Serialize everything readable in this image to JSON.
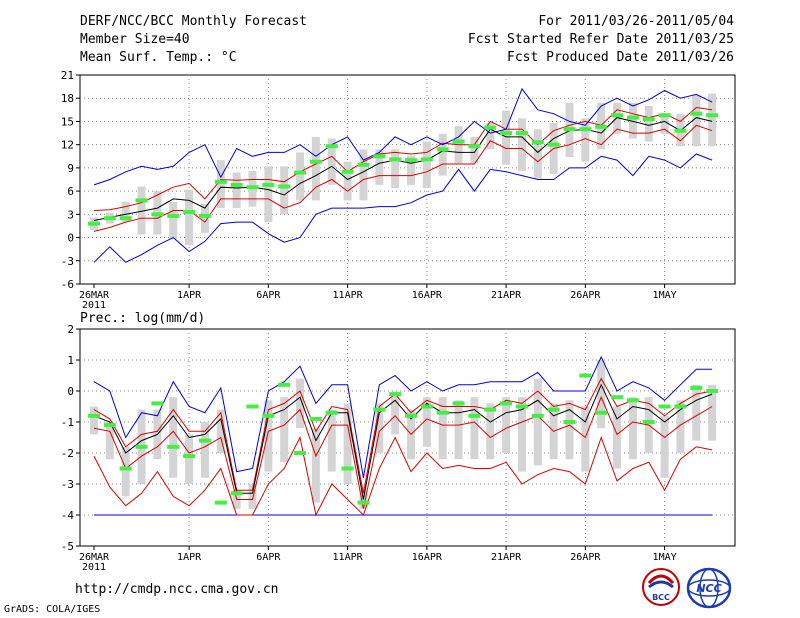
{
  "header": {
    "title": "DERF/NCC/BCC Monthly Forecast",
    "member_size": "Member Size=40",
    "variable": "Mean Surf. Temp.: °C",
    "period": "For 2011/03/26-2011/05/04",
    "started": "Fcst Started Refer Date 2011/03/25",
    "produced": "Fcst Produced Date 2011/03/26"
  },
  "panel2_label": "Prec.: log(mm/d)",
  "footer": {
    "url": "http://cmdp.ncc.cma.gov.cn",
    "credit": "GrADS: COLA/IGES",
    "logo1_text": "BCC",
    "logo2_text": "NCC"
  },
  "colors": {
    "envelope": "#0000dd",
    "spread": "#dd0000",
    "mean": "#000000",
    "box": "#d4d4d4",
    "median": "#44ee44",
    "grid": "#888888"
  },
  "chart_data": [
    {
      "type": "box-envelope",
      "variable": "Mean Surf. Temp.",
      "units": "°C",
      "x": [
        "26MAR",
        "27MAR",
        "28MAR",
        "29MAR",
        "30MAR",
        "31MAR",
        "1APR",
        "2APR",
        "3APR",
        "4APR",
        "5APR",
        "6APR",
        "7APR",
        "8APR",
        "9APR",
        "10APR",
        "11APR",
        "12APR",
        "13APR",
        "14APR",
        "15APR",
        "16APR",
        "17APR",
        "18APR",
        "19APR",
        "20APR",
        "21APR",
        "22APR",
        "23APR",
        "24APR",
        "25APR",
        "26APR",
        "27APR",
        "28APR",
        "29APR",
        "30APR",
        "1MAY",
        "2MAY",
        "3MAY",
        "4MAY"
      ],
      "x_tick_labels": [
        "26MAR\n2011",
        "1APR",
        "6APR",
        "11APR",
        "16APR",
        "21APR",
        "26APR",
        "1MAY"
      ],
      "x_tick_positions": [
        "26MAR",
        "1APR",
        "6APR",
        "11APR",
        "16APR",
        "21APR",
        "26APR",
        "1MAY"
      ],
      "ylim": [
        -6,
        21
      ],
      "yticks": [
        -6,
        -3,
        0,
        3,
        6,
        9,
        12,
        15,
        18,
        21
      ],
      "series": [
        {
          "name": "max",
          "color": "#0000dd",
          "values": [
            6.8,
            7.5,
            8.5,
            9.2,
            8.8,
            9.2,
            11,
            12,
            7.8,
            11.5,
            10.5,
            11,
            11,
            12,
            10.5,
            12,
            13,
            10,
            11,
            13,
            12,
            13,
            12,
            13,
            15,
            13.5,
            14,
            19.2,
            16.5,
            16,
            15,
            14.5,
            17,
            18,
            17,
            17.8,
            19,
            18,
            18.5,
            17.5
          ]
        },
        {
          "name": "spread_upper",
          "color": "#dd0000",
          "values": [
            3.5,
            3.6,
            4.0,
            4.5,
            5.5,
            6.5,
            7.0,
            5.0,
            7.5,
            7.4,
            7.5,
            7.5,
            7.2,
            8.5,
            9.5,
            10.5,
            8.5,
            9.8,
            10.8,
            11.0,
            10.8,
            11.0,
            12.2,
            12.0,
            12.0,
            15.0,
            14.0,
            14.0,
            12.0,
            13.8,
            14.5,
            15.0,
            14.5,
            16.5,
            16.0,
            15.5,
            16.0,
            15.0,
            16.8,
            16.5
          ]
        },
        {
          "name": "mean",
          "color": "#000000",
          "values": [
            2.2,
            2.6,
            3.0,
            3.4,
            3.8,
            5.0,
            4.8,
            3.8,
            6.5,
            6.4,
            6.5,
            6.2,
            5.5,
            7.0,
            8.0,
            9.2,
            7.5,
            8.5,
            9.6,
            10.0,
            9.6,
            10.0,
            11.2,
            11.0,
            11.0,
            14.0,
            13.0,
            13.0,
            11.0,
            12.8,
            13.8,
            14.0,
            13.5,
            15.5,
            15.0,
            14.5,
            15.0,
            13.8,
            15.5,
            15.0
          ]
        },
        {
          "name": "spread_lower",
          "color": "#dd0000",
          "values": [
            0.8,
            1.3,
            2.0,
            2.5,
            2.5,
            3.5,
            3.5,
            2.0,
            5.0,
            5.0,
            5.0,
            5.0,
            3.8,
            4.5,
            6.5,
            7.5,
            6.0,
            7.5,
            8.0,
            8.0,
            8.0,
            8.5,
            9.5,
            9.5,
            9.5,
            12.5,
            11.5,
            11.5,
            9.8,
            11.5,
            12.0,
            12.8,
            12.0,
            14.0,
            13.5,
            13.5,
            14.0,
            12.5,
            14.5,
            13.8
          ]
        },
        {
          "name": "min",
          "color": "#0000dd",
          "values": [
            -3.2,
            -1.2,
            -3.2,
            -2.2,
            -1.0,
            0,
            -1.8,
            -0.5,
            1.8,
            2.0,
            2.0,
            0.5,
            -0.6,
            0,
            3.0,
            3.8,
            3.8,
            3.8,
            4.0,
            4.0,
            4.5,
            5.5,
            6.0,
            8.8,
            6.0,
            8.8,
            8.5,
            8.0,
            7.5,
            7.5,
            9.0,
            9.0,
            10.5,
            10.0,
            8.0,
            10.5,
            10.0,
            9.0,
            10.8,
            10.0
          ]
        },
        {
          "name": "box_high",
          "color": "#d4d4d4",
          "values": [
            2.6,
            3.2,
            4.6,
            6.6,
            6.0,
            4.6,
            6.2,
            4.4,
            10.0,
            8.4,
            8.6,
            9.2,
            9.2,
            11.0,
            13.0,
            12.8,
            9.8,
            11.4,
            11.4,
            11.4,
            10.6,
            12.4,
            13.4,
            14.4,
            13.0,
            14.8,
            16.4,
            15.4,
            14.0,
            14.8,
            17.4,
            15.4,
            17.4,
            17.4,
            17.4,
            17.0,
            16.0,
            16.0,
            18.4,
            18.6
          ]
        },
        {
          "name": "box_low",
          "color": "#d4d4d4",
          "values": [
            1.0,
            1.8,
            2.0,
            0.4,
            0.4,
            -0.2,
            -1.0,
            0.6,
            3.8,
            3.8,
            4.0,
            2.0,
            3.0,
            4.8,
            4.8,
            6.8,
            4.8,
            4.8,
            6.8,
            6.4,
            6.8,
            6.4,
            8.0,
            9.6,
            9.6,
            11.4,
            9.4,
            8.6,
            7.6,
            8.2,
            10.4,
            9.8,
            11.4,
            13.4,
            12.8,
            12.4,
            13.4,
            11.8,
            11.8,
            11.8
          ]
        },
        {
          "name": "median",
          "color": "#44ee44",
          "values": [
            1.8,
            2.5,
            2.5,
            4.8,
            3.0,
            2.8,
            3.3,
            2.8,
            7.2,
            6.8,
            6.5,
            6.8,
            6.6,
            8.4,
            9.8,
            11.8,
            8.5,
            9.4,
            10.5,
            10.1,
            10.0,
            10.1,
            11.4,
            12.4,
            11.8,
            14.2,
            13.5,
            13.5,
            12.3,
            12.0,
            14.0,
            14.0,
            14.3,
            15.8,
            15.5,
            15.3,
            15.8,
            13.8,
            16.0,
            15.8
          ]
        }
      ]
    },
    {
      "type": "box-envelope",
      "variable": "Prec.",
      "units": "log(mm/d)",
      "x": [
        "26MAR",
        "27MAR",
        "28MAR",
        "29MAR",
        "30MAR",
        "31MAR",
        "1APR",
        "2APR",
        "3APR",
        "4APR",
        "5APR",
        "6APR",
        "7APR",
        "8APR",
        "9APR",
        "10APR",
        "11APR",
        "12APR",
        "13APR",
        "14APR",
        "15APR",
        "16APR",
        "17APR",
        "18APR",
        "19APR",
        "20APR",
        "21APR",
        "22APR",
        "23APR",
        "24APR",
        "25APR",
        "26APR",
        "27APR",
        "28APR",
        "29APR",
        "30APR",
        "1MAY",
        "2MAY",
        "3MAY",
        "4MAY"
      ],
      "x_tick_labels": [
        "26MAR\n2011",
        "1APR",
        "6APR",
        "11APR",
        "16APR",
        "21APR",
        "26APR",
        "1MAY"
      ],
      "x_tick_positions": [
        "26MAR",
        "1APR",
        "6APR",
        "11APR",
        "16APR",
        "21APR",
        "26APR",
        "1MAY"
      ],
      "ylim": [
        -5,
        2
      ],
      "yticks": [
        -5,
        -4,
        -3,
        -2,
        -1,
        0,
        1,
        2
      ],
      "series": [
        {
          "name": "max",
          "color": "#0000dd",
          "values": [
            0.3,
            0.0,
            -1.5,
            -0.7,
            -0.8,
            0.3,
            -0.5,
            -0.7,
            0.1,
            -2.6,
            -2.5,
            0.0,
            0.3,
            0.8,
            -0.4,
            0.2,
            0.2,
            -2.8,
            0.2,
            0.5,
            0.0,
            0.3,
            0.0,
            0.2,
            0.2,
            0.3,
            0.3,
            0.3,
            0.6,
            0.0,
            0.0,
            0.0,
            1.1,
            0.0,
            0.3,
            0.1,
            -0.3,
            0.2,
            0.7,
            0.7
          ]
        },
        {
          "name": "spread_upper",
          "color": "#dd0000",
          "values": [
            -0.6,
            -0.9,
            -1.8,
            -1.4,
            -1.3,
            -0.6,
            -1.3,
            -1.3,
            -0.7,
            -3.2,
            -3.2,
            -0.6,
            -0.4,
            0.0,
            -1.3,
            -0.5,
            -0.6,
            -3.3,
            -0.5,
            -0.1,
            -0.7,
            -0.3,
            -0.5,
            -0.5,
            -0.5,
            -0.6,
            -0.3,
            -0.4,
            0.0,
            -0.5,
            -0.4,
            -0.6,
            0.4,
            -0.5,
            -0.3,
            -0.4,
            -0.8,
            -0.4,
            -0.1,
            0.0
          ]
        },
        {
          "name": "mean",
          "color": "#000000",
          "values": [
            -0.8,
            -1.0,
            -2.0,
            -1.6,
            -1.4,
            -0.8,
            -1.5,
            -1.4,
            -0.9,
            -3.3,
            -3.3,
            -0.8,
            -0.6,
            -0.2,
            -1.6,
            -0.7,
            -0.7,
            -3.5,
            -0.7,
            -0.3,
            -0.9,
            -0.4,
            -0.7,
            -0.7,
            -0.6,
            -1.0,
            -0.7,
            -0.6,
            -0.3,
            -0.8,
            -0.6,
            -1.0,
            0.2,
            -0.9,
            -0.5,
            -0.6,
            -1.0,
            -0.6,
            -0.3,
            -0.1
          ]
        },
        {
          "name": "spread_lower",
          "color": "#dd0000",
          "values": [
            -1.2,
            -1.3,
            -2.5,
            -2.1,
            -1.8,
            -1.3,
            -2.0,
            -1.8,
            -1.5,
            -3.5,
            -3.5,
            -1.3,
            -1.1,
            -0.6,
            -2.1,
            -1.1,
            -1.1,
            -3.8,
            -1.3,
            -0.8,
            -1.4,
            -0.9,
            -1.1,
            -1.1,
            -1.0,
            -1.5,
            -1.2,
            -1.0,
            -0.8,
            -1.3,
            -1.1,
            -1.5,
            -0.2,
            -1.4,
            -1.0,
            -1.1,
            -1.5,
            -1.1,
            -0.8,
            -0.5
          ]
        },
        {
          "name": "min",
          "color": "#dd0000",
          "values": [
            -2.1,
            -3.1,
            -3.7,
            -3.3,
            -2.6,
            -3.4,
            -3.7,
            -3.2,
            -2.5,
            -4.0,
            -4.0,
            -3.0,
            -2.5,
            -1.5,
            -4.0,
            -3.0,
            -3.5,
            -4.0,
            -2.5,
            -1.5,
            -2.6,
            -2.0,
            -2.5,
            -2.4,
            -2.5,
            -2.5,
            -2.3,
            -3.0,
            -2.7,
            -2.5,
            -2.6,
            -3.0,
            -1.5,
            -2.9,
            -2.5,
            -2.3,
            -3.2,
            -2.2,
            -1.8,
            -1.9
          ]
        },
        {
          "name": "box_high",
          "color": "#d4d4d4",
          "values": [
            -0.5,
            -1.0,
            -1.8,
            -0.6,
            -0.6,
            -0.2,
            -1.4,
            -1.0,
            -0.6,
            -3.2,
            -3.0,
            -0.3,
            -0.2,
            0.4,
            -1.2,
            -0.6,
            -0.4,
            -3.2,
            -0.4,
            -0.1,
            -0.6,
            -0.2,
            -0.2,
            -0.3,
            -0.2,
            -0.4,
            -0.2,
            -0.2,
            0.4,
            -0.4,
            -0.3,
            -0.5,
            1.0,
            -0.5,
            -0.2,
            -0.2,
            -0.8,
            -0.3,
            0.2,
            0.2
          ]
        },
        {
          "name": "box_low",
          "color": "#d4d4d4",
          "values": [
            -1.4,
            -2.2,
            -3.4,
            -3.0,
            -2.2,
            -2.8,
            -3.0,
            -2.8,
            -2.0,
            -3.8,
            -3.8,
            -2.6,
            -2.3,
            -1.2,
            -3.6,
            -2.6,
            -3.0,
            -3.8,
            -2.0,
            -1.4,
            -2.2,
            -1.8,
            -2.2,
            -2.2,
            -2.2,
            -2.2,
            -2.0,
            -2.6,
            -2.4,
            -2.2,
            -2.2,
            -2.6,
            -1.2,
            -2.5,
            -2.2,
            -2.0,
            -2.8,
            -2.0,
            -1.6,
            -1.6
          ]
        },
        {
          "name": "median",
          "color": "#44ee44",
          "values": [
            -0.8,
            -1.1,
            -2.5,
            -1.8,
            -0.4,
            -1.8,
            -2.1,
            -1.6,
            -3.6,
            -3.3,
            -0.5,
            -0.8,
            0.2,
            -2.0,
            -0.9,
            -0.7,
            -2.5,
            -3.6,
            -0.6,
            -0.1,
            -0.8,
            -0.5,
            -0.7,
            -0.4,
            -0.8,
            -0.6,
            -0.4,
            -0.5,
            -0.8,
            -0.6,
            -1.0,
            0.5,
            -0.7,
            -0.2,
            -0.3,
            -1.0,
            -0.5,
            -0.5,
            0.1,
            0.0
          ]
        },
        {
          "name": "floor",
          "color": "#0000dd",
          "values": [
            -4,
            -4,
            -4,
            -4,
            -4,
            -4,
            -4,
            -4,
            -4,
            -4,
            -4,
            -4,
            -4,
            -4,
            -4,
            -4,
            -4,
            -4,
            -4,
            -4,
            -4,
            -4,
            -4,
            -4,
            -4,
            -4,
            -4,
            -4,
            -4,
            -4,
            -4,
            -4,
            -4,
            -4,
            -4,
            -4,
            -4,
            -4,
            -4,
            -4
          ]
        }
      ]
    }
  ]
}
